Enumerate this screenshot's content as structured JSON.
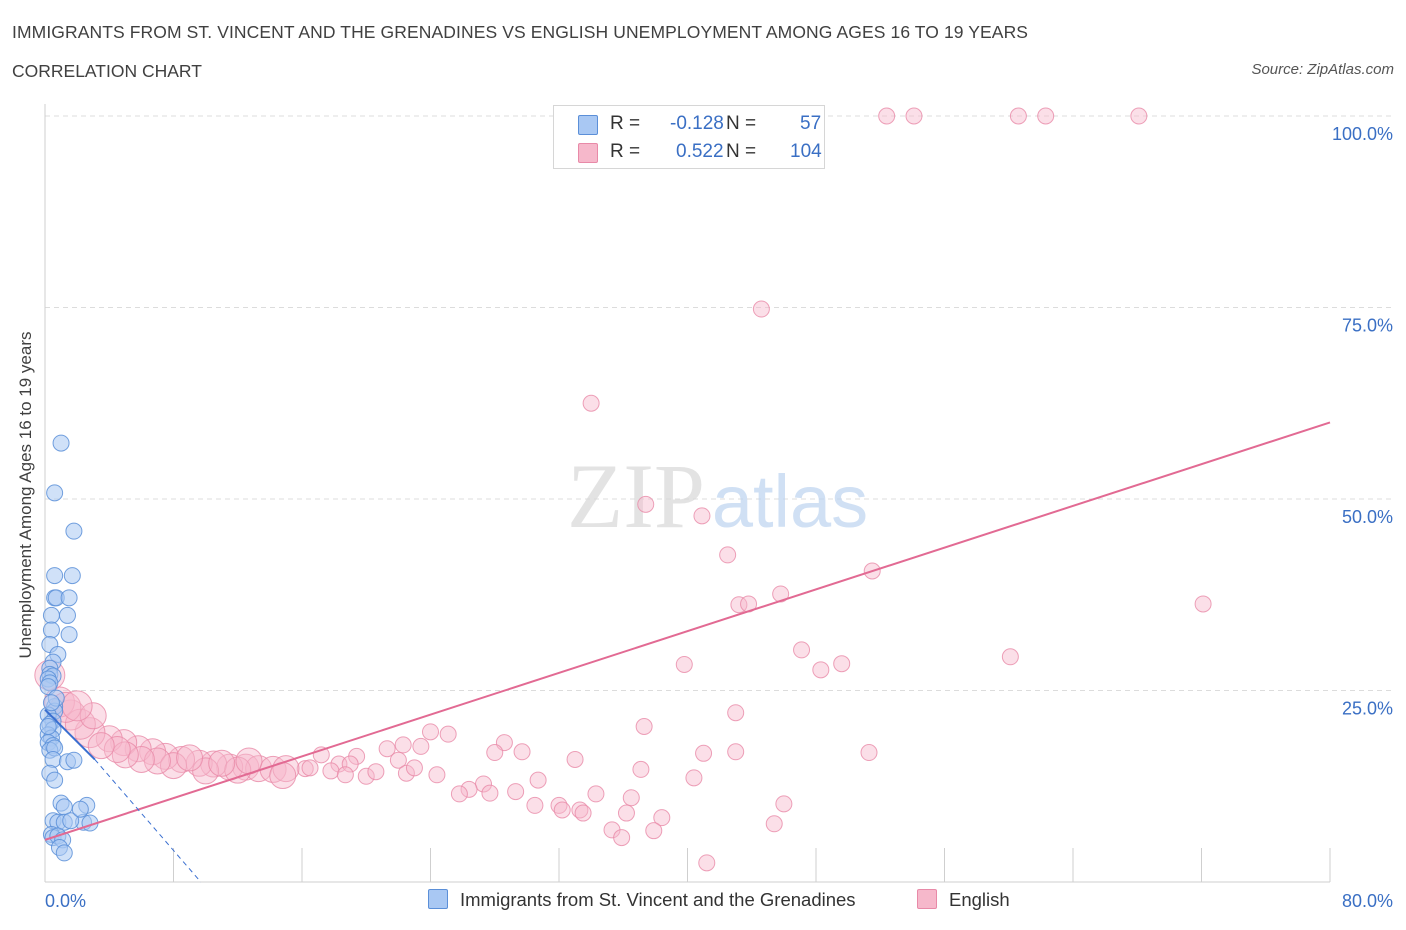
{
  "header": {
    "title": "IMMIGRANTS FROM ST. VINCENT AND THE GRENADINES VS ENGLISH UNEMPLOYMENT AMONG AGES 16 TO 19 YEARS",
    "subtitle": "CORRELATION CHART",
    "source": "Source: ZipAtlas.com"
  },
  "watermark": {
    "zip": "ZIP",
    "atlas": "atlas"
  },
  "legend": {
    "r_label": "R =",
    "n_label": "N =",
    "rows": [
      {
        "series": "Immigrants from St. Vincent and the Grenadines",
        "r": "-0.128",
        "n": "57",
        "color": "#a9c8f3"
      },
      {
        "series": "English",
        "r": "0.522",
        "n": "104",
        "color": "#f6b8cb"
      }
    ]
  },
  "colors": {
    "blue_fill": "#a9c8f3",
    "blue_stroke": "#5b8fd8",
    "blue_line": "#3a6fd0",
    "pink_fill": "#f6b8cb",
    "pink_stroke": "#e88aa8",
    "pink_line": "#e26a93",
    "tick_label": "#3a6fc4",
    "grid": "#dcdcdc"
  },
  "chart_data": {
    "type": "scatter",
    "title": "IMMIGRANTS FROM ST. VINCENT AND THE GRENADINES VS ENGLISH UNEMPLOYMENT AMONG AGES 16 TO 19 YEARS",
    "xlabel": "",
    "ylabel": "Unemployment Among Ages 16 to 19 years",
    "xlim": [
      0,
      80
    ],
    "ylim": [
      0,
      100
    ],
    "x_tick_labels": [
      "0.0%",
      "80.0%"
    ],
    "y_tick_labels": [
      "25.0%",
      "50.0%",
      "75.0%",
      "100.0%"
    ],
    "y_ticks": [
      25,
      50,
      75,
      100
    ],
    "grid": true,
    "legend_position": "top-center",
    "series": [
      {
        "name": "Immigrants from St. Vincent and the Grenadines",
        "color": "#a9c8f3",
        "trend": {
          "x": [
            0,
            3.1
          ],
          "y": [
            22.5,
            16.0
          ],
          "dashed_to": [
            9.7,
            0
          ]
        },
        "points": [
          [
            1.0,
            57.3
          ],
          [
            0.6,
            50.8
          ],
          [
            1.8,
            45.8
          ],
          [
            0.6,
            40.0
          ],
          [
            1.7,
            40.0
          ],
          [
            0.6,
            37.1
          ],
          [
            0.7,
            37.1
          ],
          [
            1.5,
            37.1
          ],
          [
            1.4,
            34.8
          ],
          [
            0.4,
            34.8
          ],
          [
            1.5,
            32.3
          ],
          [
            0.4,
            32.9
          ],
          [
            0.3,
            31.0
          ],
          [
            0.8,
            29.7
          ],
          [
            0.5,
            28.7
          ],
          [
            0.3,
            27.9
          ],
          [
            0.3,
            27.1
          ],
          [
            0.5,
            26.9
          ],
          [
            0.2,
            26.5
          ],
          [
            0.3,
            26.0
          ],
          [
            0.2,
            25.5
          ],
          [
            0.6,
            22.9
          ],
          [
            0.6,
            22.3
          ],
          [
            0.2,
            21.8
          ],
          [
            0.5,
            21.0
          ],
          [
            0.3,
            20.6
          ],
          [
            0.5,
            19.9
          ],
          [
            0.2,
            19.2
          ],
          [
            0.4,
            18.8
          ],
          [
            0.2,
            18.2
          ],
          [
            0.5,
            17.8
          ],
          [
            0.3,
            17.2
          ],
          [
            0.6,
            17.5
          ],
          [
            0.5,
            16.0
          ],
          [
            1.4,
            15.7
          ],
          [
            1.8,
            15.9
          ],
          [
            0.3,
            14.2
          ],
          [
            0.6,
            13.3
          ],
          [
            1.0,
            10.3
          ],
          [
            1.2,
            9.8
          ],
          [
            2.6,
            10.0
          ],
          [
            0.5,
            8.0
          ],
          [
            0.8,
            7.8
          ],
          [
            1.2,
            7.8
          ],
          [
            2.4,
            7.8
          ],
          [
            2.8,
            7.7
          ],
          [
            1.6,
            8.0
          ],
          [
            0.4,
            6.2
          ],
          [
            0.5,
            5.8
          ],
          [
            0.8,
            6.0
          ],
          [
            1.1,
            5.5
          ],
          [
            0.9,
            4.5
          ],
          [
            1.2,
            3.8
          ],
          [
            0.2,
            20.3
          ],
          [
            0.7,
            24.0
          ],
          [
            0.4,
            23.4
          ],
          [
            2.2,
            9.5
          ]
        ]
      },
      {
        "name": "English",
        "color": "#f6b8cb",
        "trend": {
          "x": [
            0,
            80
          ],
          "y": [
            5.5,
            60.0
          ]
        },
        "points": [
          [
            52.4,
            100.0
          ],
          [
            54.1,
            100.0
          ],
          [
            60.6,
            100.0
          ],
          [
            62.3,
            100.0
          ],
          [
            68.1,
            100.0
          ],
          [
            44.6,
            74.8
          ],
          [
            34.0,
            62.5
          ],
          [
            37.4,
            49.3
          ],
          [
            40.9,
            47.8
          ],
          [
            42.5,
            42.7
          ],
          [
            51.5,
            40.6
          ],
          [
            45.8,
            37.6
          ],
          [
            43.2,
            36.2
          ],
          [
            43.8,
            36.3
          ],
          [
            72.1,
            36.3
          ],
          [
            47.1,
            30.3
          ],
          [
            60.1,
            29.4
          ],
          [
            39.8,
            28.4
          ],
          [
            49.6,
            28.5
          ],
          [
            48.3,
            27.7
          ],
          [
            43.0,
            22.1
          ],
          [
            37.3,
            20.3
          ],
          [
            25.1,
            19.3
          ],
          [
            24.0,
            19.6
          ],
          [
            28.6,
            18.2
          ],
          [
            22.3,
            17.9
          ],
          [
            21.3,
            17.4
          ],
          [
            23.4,
            17.7
          ],
          [
            28.0,
            16.9
          ],
          [
            29.7,
            17.0
          ],
          [
            51.3,
            16.9
          ],
          [
            19.4,
            16.4
          ],
          [
            43.0,
            17.0
          ],
          [
            41.0,
            16.8
          ],
          [
            33.0,
            16.0
          ],
          [
            17.2,
            16.6
          ],
          [
            18.3,
            15.4
          ],
          [
            22.0,
            15.9
          ],
          [
            16.2,
            14.8
          ],
          [
            17.8,
            14.5
          ],
          [
            20.0,
            13.8
          ],
          [
            22.5,
            14.2
          ],
          [
            24.4,
            14.0
          ],
          [
            37.1,
            14.7
          ],
          [
            40.4,
            13.6
          ],
          [
            27.3,
            12.8
          ],
          [
            26.4,
            12.1
          ],
          [
            30.7,
            13.3
          ],
          [
            25.8,
            11.5
          ],
          [
            27.7,
            11.6
          ],
          [
            29.3,
            11.8
          ],
          [
            34.3,
            11.5
          ],
          [
            36.5,
            11.0
          ],
          [
            32.0,
            10.0
          ],
          [
            30.5,
            10.0
          ],
          [
            46.0,
            10.2
          ],
          [
            33.3,
            9.4
          ],
          [
            32.2,
            9.4
          ],
          [
            33.5,
            9.0
          ],
          [
            36.2,
            9.0
          ],
          [
            38.4,
            8.4
          ],
          [
            45.4,
            7.6
          ],
          [
            37.9,
            6.7
          ],
          [
            35.3,
            6.8
          ],
          [
            35.9,
            5.8
          ],
          [
            41.2,
            2.5
          ],
          [
            12.5,
            15.0
          ],
          [
            11.5,
            15.0
          ],
          [
            10.5,
            15.4
          ],
          [
            9.6,
            15.5
          ],
          [
            8.5,
            16.0
          ],
          [
            7.5,
            16.4
          ],
          [
            6.7,
            17.0
          ],
          [
            5.8,
            17.4
          ],
          [
            4.9,
            18.2
          ],
          [
            4.0,
            18.7
          ],
          [
            2.8,
            19.5
          ],
          [
            1.6,
            21.8
          ],
          [
            0.9,
            23.5
          ],
          [
            0.3,
            27.0
          ],
          [
            13.3,
            14.8
          ],
          [
            14.2,
            14.7
          ],
          [
            15.0,
            14.8
          ],
          [
            12.0,
            14.6
          ],
          [
            10.0,
            14.5
          ],
          [
            8.0,
            15.2
          ],
          [
            7.0,
            15.8
          ],
          [
            6.0,
            16.0
          ],
          [
            5.0,
            16.6
          ],
          [
            4.5,
            17.3
          ],
          [
            3.5,
            17.8
          ],
          [
            2.2,
            20.6
          ],
          [
            3.0,
            21.7
          ],
          [
            1.3,
            22.8
          ],
          [
            14.8,
            13.9
          ],
          [
            16.5,
            14.9
          ],
          [
            19.0,
            15.4
          ],
          [
            20.6,
            14.4
          ],
          [
            23.0,
            14.9
          ],
          [
            18.7,
            14.0
          ],
          [
            11.0,
            15.5
          ],
          [
            9.0,
            16.2
          ],
          [
            2.0,
            23.0
          ],
          [
            12.7,
            15.8
          ]
        ]
      }
    ]
  }
}
